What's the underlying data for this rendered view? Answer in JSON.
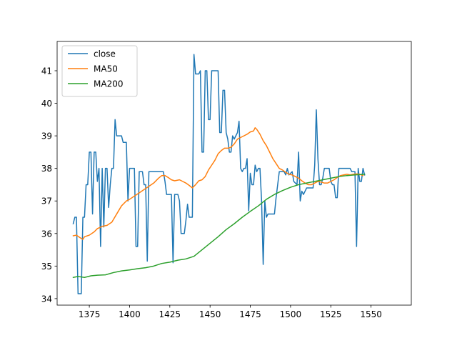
{
  "chart_data": {
    "type": "line",
    "title": "",
    "xlabel": "",
    "ylabel": "",
    "xlim": [
      1355,
      1575
    ],
    "ylim": [
      33.8,
      41.9
    ],
    "x_ticks": [
      1375,
      1400,
      1425,
      1450,
      1475,
      1500,
      1525,
      1550
    ],
    "y_ticks": [
      34,
      35,
      36,
      37,
      38,
      39,
      40,
      41
    ],
    "grid": false,
    "legend_position": "top-left",
    "series": [
      {
        "name": "close",
        "color": "#1f77b4",
        "points": [
          [
            1365,
            36.3
          ],
          [
            1366,
            36.5
          ],
          [
            1367,
            36.5
          ],
          [
            1368,
            34.15
          ],
          [
            1370,
            34.15
          ],
          [
            1371,
            36.5
          ],
          [
            1372,
            36.5
          ],
          [
            1373,
            37.5
          ],
          [
            1374,
            37.5
          ],
          [
            1375,
            38.5
          ],
          [
            1376,
            38.5
          ],
          [
            1377,
            36.6
          ],
          [
            1378,
            38.5
          ],
          [
            1379,
            38.5
          ],
          [
            1380,
            37.6
          ],
          [
            1381,
            38.0
          ],
          [
            1382,
            35.6
          ],
          [
            1383,
            38.0
          ],
          [
            1384,
            36.2
          ],
          [
            1385,
            38.0
          ],
          [
            1386,
            38.0
          ],
          [
            1387,
            36.8
          ],
          [
            1388,
            37.5
          ],
          [
            1389,
            38.0
          ],
          [
            1390,
            38.0
          ],
          [
            1391,
            39.5
          ],
          [
            1392,
            39.0
          ],
          [
            1395,
            39.0
          ],
          [
            1396,
            38.8
          ],
          [
            1398,
            38.8
          ],
          [
            1399,
            37.0
          ],
          [
            1400,
            38.0
          ],
          [
            1403,
            38.0
          ],
          [
            1404,
            35.6
          ],
          [
            1405,
            35.6
          ],
          [
            1406,
            37.9
          ],
          [
            1408,
            37.9
          ],
          [
            1409,
            37.5
          ],
          [
            1410,
            37.5
          ],
          [
            1411,
            35.15
          ],
          [
            1412,
            37.9
          ],
          [
            1421,
            37.9
          ],
          [
            1422,
            37.6
          ],
          [
            1423,
            37.2
          ],
          [
            1426,
            37.2
          ],
          [
            1427,
            35.1
          ],
          [
            1428,
            37.2
          ],
          [
            1430,
            37.2
          ],
          [
            1431,
            37.0
          ],
          [
            1432,
            36.0
          ],
          [
            1434,
            36.0
          ],
          [
            1435,
            36.4
          ],
          [
            1436,
            36.9
          ],
          [
            1437,
            36.5
          ],
          [
            1439,
            36.5
          ],
          [
            1440,
            41.5
          ],
          [
            1441,
            40.9
          ],
          [
            1443,
            40.9
          ],
          [
            1444,
            41.0
          ],
          [
            1445,
            38.5
          ],
          [
            1446,
            38.5
          ],
          [
            1447,
            41.0
          ],
          [
            1448,
            41.0
          ],
          [
            1449,
            39.5
          ],
          [
            1450,
            39.5
          ],
          [
            1451,
            41.0
          ],
          [
            1455,
            41.0
          ],
          [
            1456,
            39.1
          ],
          [
            1457,
            39.1
          ],
          [
            1458,
            40.4
          ],
          [
            1459,
            40.4
          ],
          [
            1460,
            39.1
          ],
          [
            1461,
            38.9
          ],
          [
            1462,
            38.5
          ],
          [
            1463,
            38.5
          ],
          [
            1464,
            39.0
          ],
          [
            1465,
            38.9
          ],
          [
            1466,
            39.0
          ],
          [
            1467,
            39.1
          ],
          [
            1468,
            39.45
          ],
          [
            1469,
            38.0
          ],
          [
            1470,
            37.9
          ],
          [
            1471,
            38.0
          ],
          [
            1472,
            38.0
          ],
          [
            1473,
            38.3
          ],
          [
            1474,
            36.7
          ],
          [
            1475,
            37.85
          ],
          [
            1476,
            37.5
          ],
          [
            1477,
            37.5
          ],
          [
            1478,
            38.1
          ],
          [
            1479,
            37.9
          ],
          [
            1480,
            38.0
          ],
          [
            1481,
            38.0
          ],
          [
            1482,
            37.0
          ],
          [
            1483,
            35.05
          ],
          [
            1484,
            37.0
          ],
          [
            1485,
            36.5
          ],
          [
            1486,
            36.6
          ],
          [
            1490,
            36.6
          ],
          [
            1491,
            37.1
          ],
          [
            1493,
            37.9
          ],
          [
            1496,
            37.9
          ],
          [
            1497,
            37.8
          ],
          [
            1498,
            38.0
          ],
          [
            1499,
            37.8
          ],
          [
            1501,
            37.9
          ],
          [
            1502,
            37.6
          ],
          [
            1504,
            37.5
          ],
          [
            1505,
            38.5
          ],
          [
            1506,
            37.0
          ],
          [
            1507,
            37.3
          ],
          [
            1508,
            37.2
          ],
          [
            1509,
            37.3
          ],
          [
            1510,
            37.4
          ],
          [
            1514,
            37.4
          ],
          [
            1515,
            38.1
          ],
          [
            1516,
            39.8
          ],
          [
            1517,
            38.3
          ],
          [
            1518,
            37.5
          ],
          [
            1519,
            37.5
          ],
          [
            1520,
            37.7
          ],
          [
            1521,
            38.0
          ],
          [
            1524,
            38.0
          ],
          [
            1525,
            37.6
          ],
          [
            1526,
            37.5
          ],
          [
            1527,
            37.5
          ],
          [
            1528,
            37.1
          ],
          [
            1529,
            37.1
          ],
          [
            1530,
            38.0
          ],
          [
            1537,
            38.0
          ],
          [
            1538,
            37.9
          ],
          [
            1540,
            37.9
          ],
          [
            1541,
            35.6
          ],
          [
            1542,
            38.0
          ],
          [
            1543,
            37.6
          ],
          [
            1544,
            37.6
          ],
          [
            1545,
            38.0
          ],
          [
            1546,
            37.8
          ]
        ]
      },
      {
        "name": "MA50",
        "color": "#ff7f0e",
        "points": [
          [
            1365,
            35.93
          ],
          [
            1367,
            35.95
          ],
          [
            1369,
            35.88
          ],
          [
            1371,
            35.82
          ],
          [
            1372,
            35.9
          ],
          [
            1375,
            35.95
          ],
          [
            1378,
            36.05
          ],
          [
            1380,
            36.15
          ],
          [
            1383,
            36.22
          ],
          [
            1386,
            36.25
          ],
          [
            1389,
            36.35
          ],
          [
            1392,
            36.6
          ],
          [
            1395,
            36.85
          ],
          [
            1398,
            37.0
          ],
          [
            1400,
            37.05
          ],
          [
            1403,
            37.15
          ],
          [
            1406,
            37.25
          ],
          [
            1409,
            37.35
          ],
          [
            1412,
            37.45
          ],
          [
            1415,
            37.55
          ],
          [
            1418,
            37.7
          ],
          [
            1420,
            37.78
          ],
          [
            1422,
            37.78
          ],
          [
            1424,
            37.72
          ],
          [
            1426,
            37.65
          ],
          [
            1428,
            37.62
          ],
          [
            1431,
            37.65
          ],
          [
            1433,
            37.6
          ],
          [
            1435,
            37.55
          ],
          [
            1437,
            37.48
          ],
          [
            1439,
            37.4
          ],
          [
            1441,
            37.5
          ],
          [
            1443,
            37.62
          ],
          [
            1445,
            37.65
          ],
          [
            1447,
            37.75
          ],
          [
            1449,
            37.95
          ],
          [
            1451,
            38.1
          ],
          [
            1453,
            38.25
          ],
          [
            1455,
            38.45
          ],
          [
            1457,
            38.55
          ],
          [
            1459,
            38.62
          ],
          [
            1461,
            38.62
          ],
          [
            1463,
            38.65
          ],
          [
            1465,
            38.75
          ],
          [
            1467,
            38.9
          ],
          [
            1469,
            38.95
          ],
          [
            1471,
            39.0
          ],
          [
            1473,
            39.05
          ],
          [
            1475,
            39.12
          ],
          [
            1477,
            39.15
          ],
          [
            1478,
            39.25
          ],
          [
            1479,
            39.2
          ],
          [
            1481,
            39.05
          ],
          [
            1483,
            38.85
          ],
          [
            1485,
            38.7
          ],
          [
            1487,
            38.5
          ],
          [
            1489,
            38.3
          ],
          [
            1491,
            38.15
          ],
          [
            1493,
            38.0
          ],
          [
            1495,
            37.95
          ],
          [
            1497,
            37.88
          ],
          [
            1499,
            37.82
          ],
          [
            1501,
            37.8
          ],
          [
            1503,
            37.75
          ],
          [
            1505,
            37.7
          ],
          [
            1507,
            37.62
          ],
          [
            1509,
            37.55
          ],
          [
            1511,
            37.5
          ],
          [
            1513,
            37.5
          ],
          [
            1515,
            37.55
          ],
          [
            1517,
            37.6
          ],
          [
            1519,
            37.58
          ],
          [
            1521,
            37.55
          ],
          [
            1523,
            37.55
          ],
          [
            1525,
            37.6
          ],
          [
            1527,
            37.65
          ],
          [
            1529,
            37.72
          ],
          [
            1531,
            37.78
          ],
          [
            1533,
            37.8
          ],
          [
            1535,
            37.82
          ],
          [
            1537,
            37.8
          ],
          [
            1539,
            37.82
          ],
          [
            1541,
            37.83
          ],
          [
            1543,
            37.82
          ],
          [
            1545,
            37.78
          ]
        ]
      },
      {
        "name": "MA200",
        "color": "#2ca02c",
        "points": [
          [
            1365,
            34.65
          ],
          [
            1368,
            34.68
          ],
          [
            1372,
            34.65
          ],
          [
            1376,
            34.7
          ],
          [
            1380,
            34.72
          ],
          [
            1385,
            34.73
          ],
          [
            1390,
            34.8
          ],
          [
            1395,
            34.85
          ],
          [
            1400,
            34.88
          ],
          [
            1405,
            34.92
          ],
          [
            1410,
            34.95
          ],
          [
            1415,
            35.0
          ],
          [
            1420,
            35.08
          ],
          [
            1425,
            35.12
          ],
          [
            1430,
            35.18
          ],
          [
            1435,
            35.22
          ],
          [
            1440,
            35.3
          ],
          [
            1445,
            35.5
          ],
          [
            1450,
            35.7
          ],
          [
            1455,
            35.9
          ],
          [
            1460,
            36.12
          ],
          [
            1465,
            36.3
          ],
          [
            1470,
            36.5
          ],
          [
            1475,
            36.68
          ],
          [
            1480,
            36.85
          ],
          [
            1485,
            37.05
          ],
          [
            1490,
            37.2
          ],
          [
            1495,
            37.32
          ],
          [
            1500,
            37.42
          ],
          [
            1505,
            37.5
          ],
          [
            1510,
            37.55
          ],
          [
            1515,
            37.6
          ],
          [
            1520,
            37.65
          ],
          [
            1525,
            37.7
          ],
          [
            1530,
            37.75
          ],
          [
            1535,
            37.78
          ],
          [
            1540,
            37.8
          ],
          [
            1546,
            37.82
          ]
        ]
      }
    ]
  }
}
